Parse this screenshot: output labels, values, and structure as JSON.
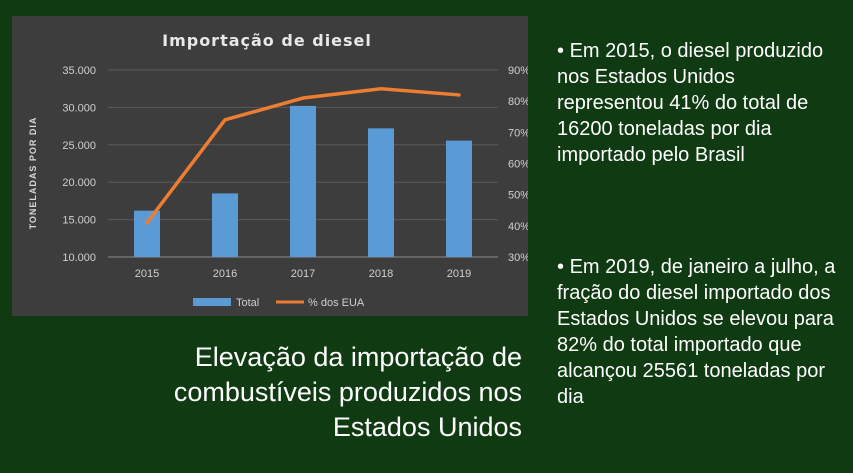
{
  "chart_data": {
    "type": "bar",
    "title": "Importação  de diesel",
    "ylabel": "TONELADAS POR DIA",
    "categories": [
      "2015",
      "2016",
      "2017",
      "2018",
      "2019"
    ],
    "series": [
      {
        "name": "Total",
        "type": "bar",
        "axis": "left",
        "values": [
          16200,
          18500,
          30200,
          27200,
          25561
        ],
        "color": "#5b9bd5"
      },
      {
        "name": "% dos EUA",
        "type": "line",
        "axis": "right",
        "values": [
          41,
          74,
          81,
          84,
          82
        ],
        "color": "#ed7d31"
      }
    ],
    "ylim": [
      10000,
      35000
    ],
    "y_ticks": [
      "35.000",
      "30.000",
      "25.000",
      "20.000",
      "15.000",
      "10.000"
    ],
    "y2lim": [
      30,
      90
    ],
    "y2_ticks": [
      "90%",
      "80%",
      "70%",
      "60%",
      "50%",
      "40%",
      "30%"
    ],
    "grid": true,
    "legend_position": "bottom"
  },
  "caption": {
    "line1": "Elevação da importação de",
    "line2": "combustíveis produzidos nos",
    "line3": "Estados Unidos"
  },
  "bullets": [
    {
      "marker": "•",
      "text": "Em 2015, o diesel produzido nos Estados Unidos representou 41% do total de 16200 toneladas por dia importado pelo Brasil"
    },
    {
      "marker": "•",
      "text": "Em 2019, de janeiro a julho, a fração do diesel importado dos Estados Unidos se elevou para 82% do total importado que alcançou 25561 toneladas por dia"
    }
  ]
}
